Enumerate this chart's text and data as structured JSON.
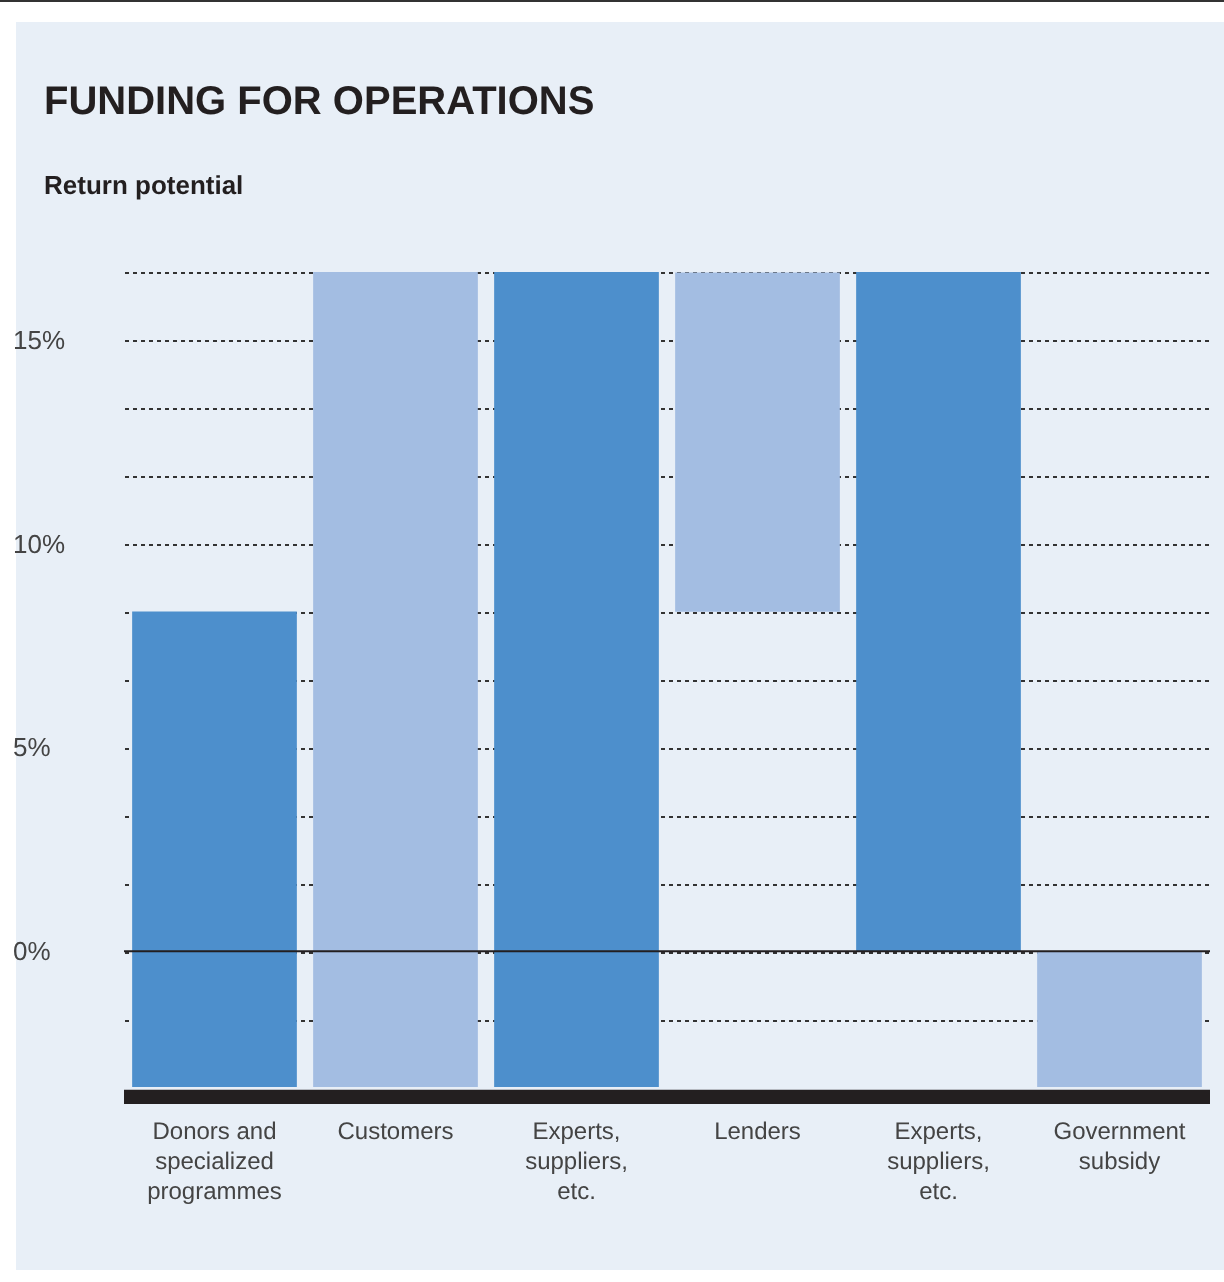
{
  "chart_data": {
    "type": "bar",
    "title": "FUNDING FOR OPERATIONS",
    "subtitle": "Return potential",
    "categories": [
      "Donors and specialized programmes",
      "Customers",
      "Experts, suppliers, etc.",
      "Lenders",
      "Experts, suppliers, etc.",
      "Government subsidy"
    ],
    "values": [
      11.67,
      20,
      20,
      8.33,
      16.67,
      3.33
    ],
    "base": [
      -3.33,
      -3.33,
      -3.33,
      8.33,
      0,
      -3.33
    ],
    "colors": [
      "#4d8fcc",
      "#a3bde2",
      "#4d8fcc",
      "#a3bde2",
      "#4d8fcc",
      "#a3bde2"
    ],
    "ylim": [
      -3.75,
      16.67
    ],
    "yticks": [
      {
        "value": -1.67,
        "label": null
      },
      {
        "value": 0,
        "label": "0%"
      },
      {
        "value": 1.67,
        "label": null
      },
      {
        "value": 3.33,
        "label": null
      },
      {
        "value": 5,
        "label": "5%"
      },
      {
        "value": 6.67,
        "label": null
      },
      {
        "value": 8.33,
        "label": null
      },
      {
        "value": 10,
        "label": "10%"
      },
      {
        "value": 11.67,
        "label": null
      },
      {
        "value": 13.33,
        "label": null
      },
      {
        "value": 15,
        "label": "15%"
      },
      {
        "value": 16.67,
        "label": null
      }
    ],
    "grid": "y",
    "line_style": "dotted",
    "ref_lines": [
      {
        "axis": "y",
        "value": 0,
        "color": "#231f20"
      }
    ],
    "bands": [
      {
        "axis": "y",
        "from": -3.75,
        "to": -3.4,
        "color": "#231f20"
      }
    ]
  }
}
